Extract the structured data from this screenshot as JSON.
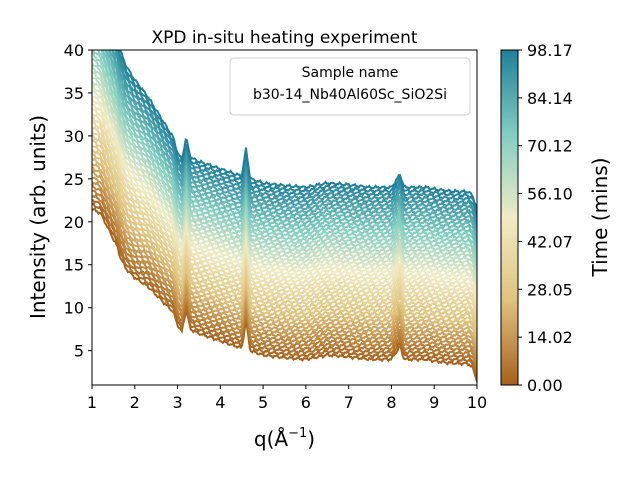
{
  "chart_data": {
    "type": "line",
    "title": "XPD in-situ heating experiment",
    "xlabel": "q(Å",
    "xlabel_sup": "−1",
    "xlabel_close": ")",
    "ylabel": "Intensity (arb. units)",
    "xlim": [
      1,
      10
    ],
    "ylim": [
      1,
      40
    ],
    "xticks": [
      1,
      2,
      3,
      4,
      5,
      6,
      7,
      8,
      9,
      10
    ],
    "yticks": [
      5,
      10,
      15,
      20,
      25,
      30,
      35,
      40
    ],
    "legend": {
      "title": "Sample name",
      "text": "b30-14_Nb40Al60Sc_SiO2Si",
      "placement": "top-right"
    },
    "colorbar": {
      "label": "Time (mins)",
      "range": [
        0.0,
        98.17
      ],
      "ticks": [
        "0.00",
        "14.02",
        "28.05",
        "42.07",
        "56.10",
        "70.12",
        "84.14",
        "98.17"
      ],
      "colors": [
        "#a6611a",
        "#dfc27d",
        "#f0ebc4",
        "#80cdc1",
        "#1f7f9b"
      ]
    },
    "series_info": {
      "count": 50,
      "time_start": 0.0,
      "time_end": 98.17,
      "base_offset_first": 0.0,
      "base_offset_last": 20.0
    },
    "base_profile": {
      "x": [
        1.0,
        1.2,
        1.4,
        1.6,
        1.65,
        1.7,
        1.8,
        2.0,
        2.3,
        2.6,
        2.9,
        3.0,
        3.1,
        3.2,
        3.3,
        3.5,
        3.8,
        4.2,
        4.5,
        4.6,
        4.7,
        5.0,
        5.5,
        6.0,
        6.5,
        7.0,
        7.5,
        8.0,
        8.2,
        8.3,
        8.5,
        8.8,
        9.0,
        9.3,
        9.6,
        9.8,
        9.9,
        10.0
      ],
      "y": [
        21.5,
        21.0,
        19.0,
        17.0,
        16.0,
        15.5,
        14.5,
        13.5,
        12.5,
        11.0,
        9.5,
        8.0,
        7.2,
        9.8,
        7.5,
        7.0,
        6.5,
        5.8,
        5.3,
        8.5,
        5.0,
        4.5,
        4.2,
        4.0,
        4.5,
        4.3,
        4.0,
        4.0,
        5.5,
        4.0,
        4.0,
        4.0,
        3.8,
        3.6,
        3.5,
        3.5,
        3.0,
        1.5
      ]
    }
  }
}
